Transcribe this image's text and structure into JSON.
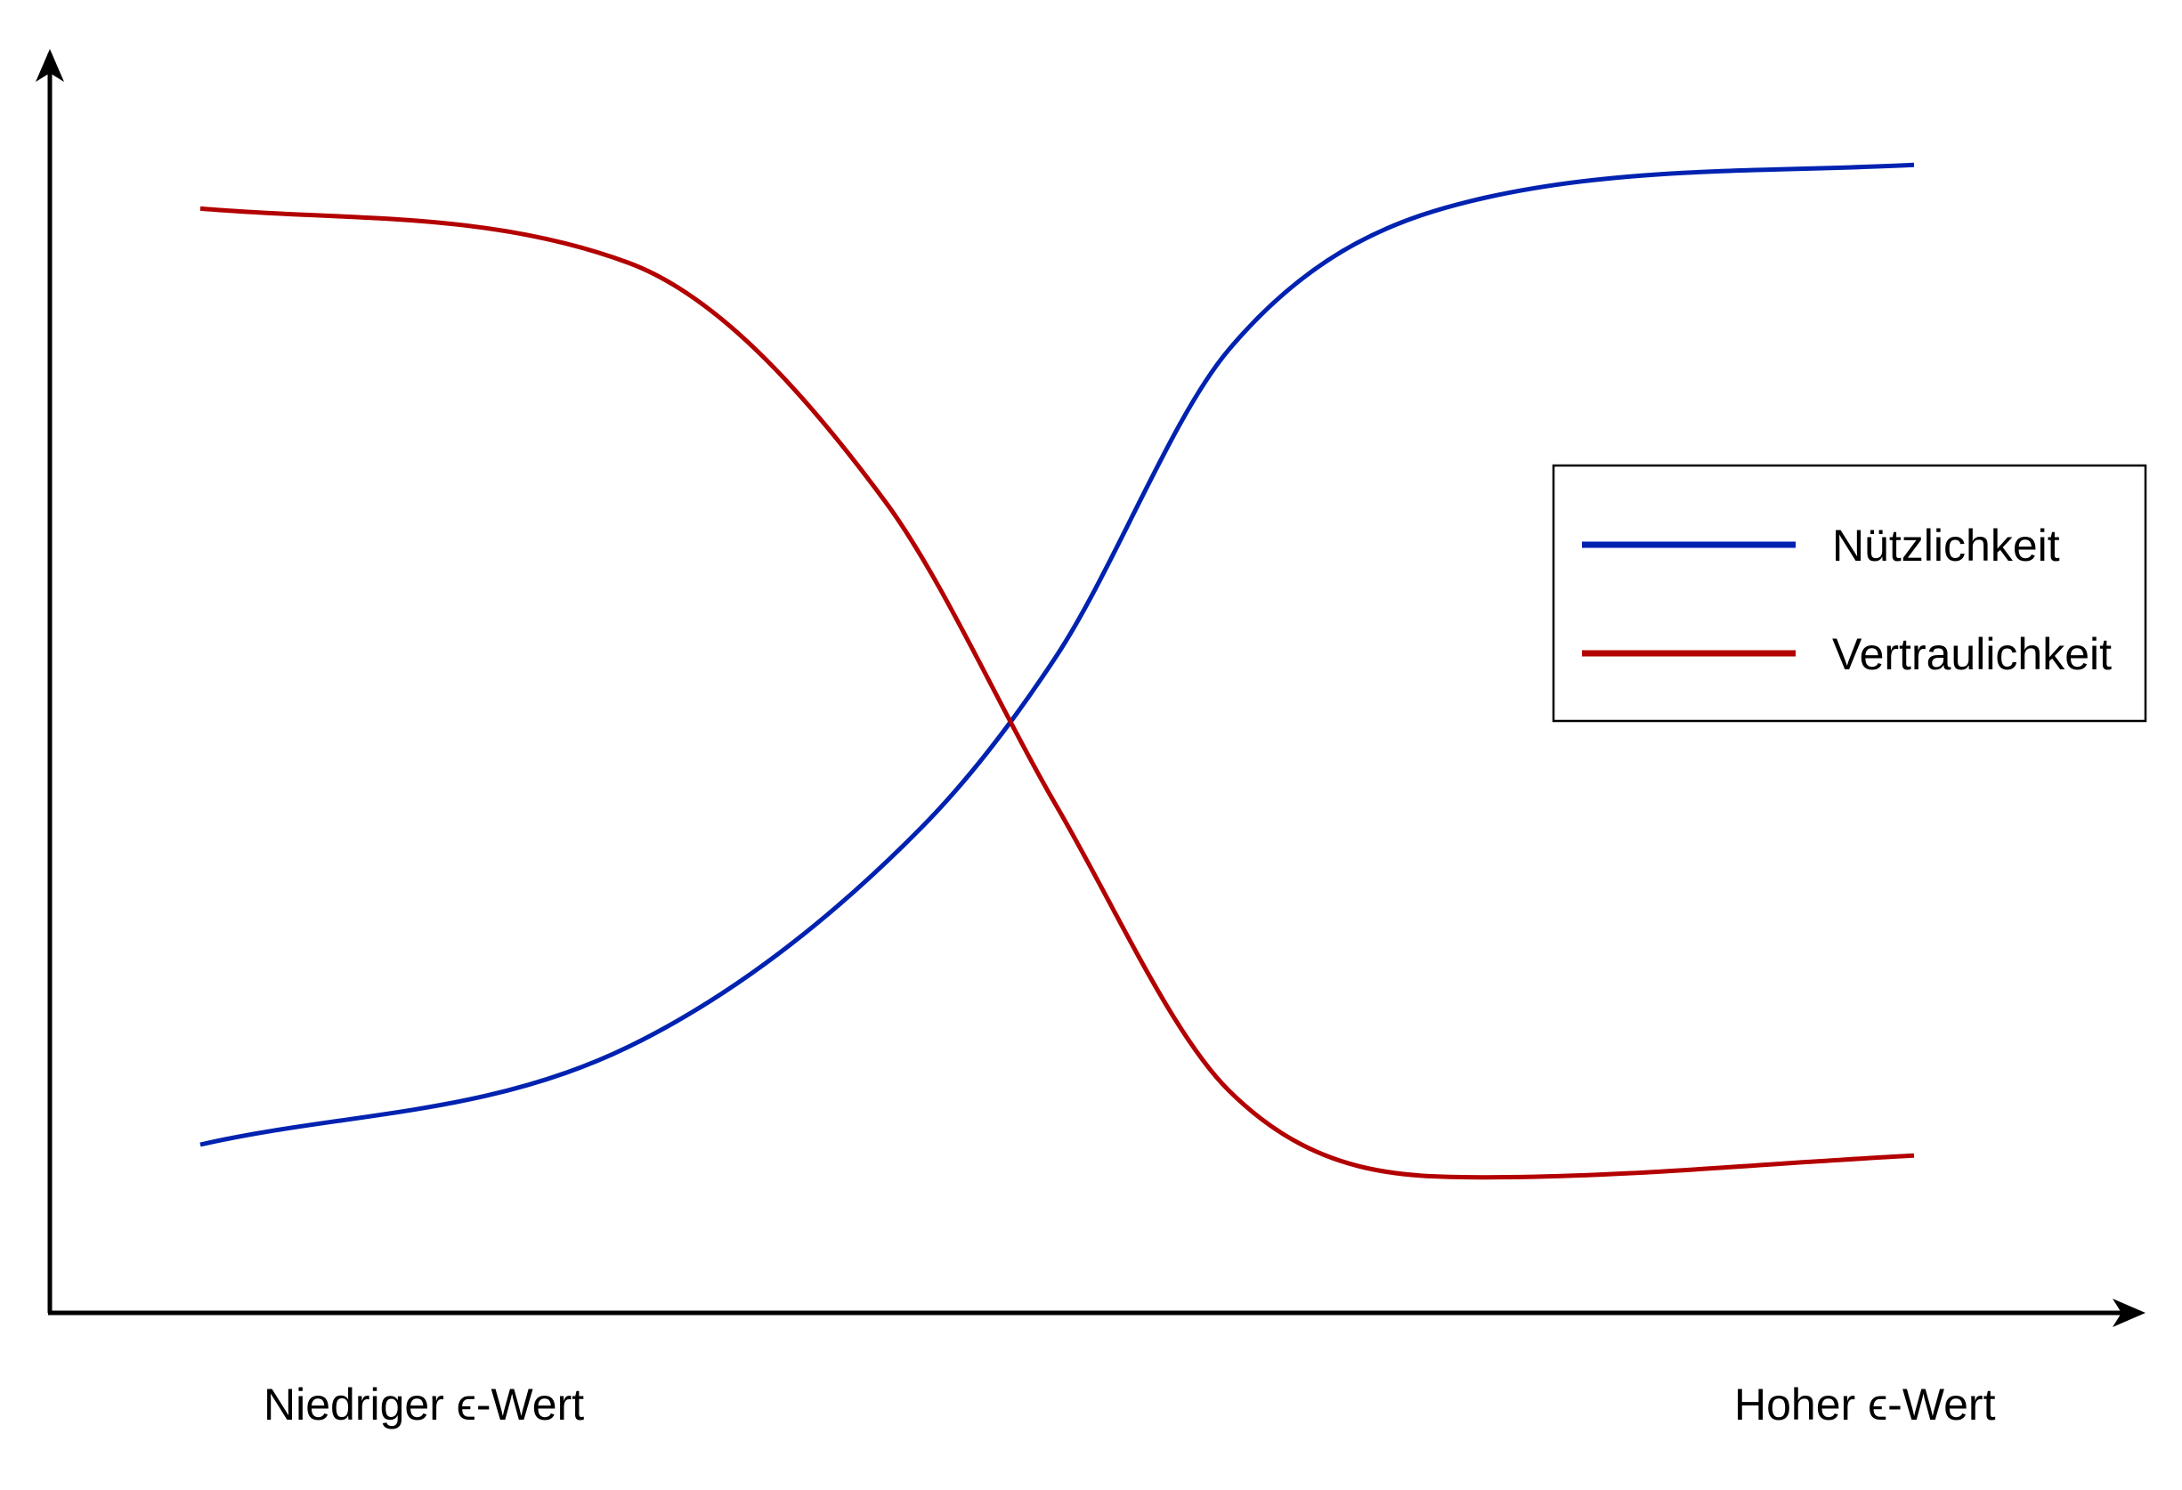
{
  "chart_data": {
    "type": "line",
    "title": "",
    "xlabel": "",
    "ylabel": "",
    "x_tick_labels": [
      "Niedriger ϵ-Wert",
      "Hoher ϵ-Wert"
    ],
    "xlim": [
      0,
      1
    ],
    "ylim": [
      0,
      1
    ],
    "grid": false,
    "legend_position": "right",
    "series": [
      {
        "name": "Nützlichkeit",
        "color": "#0022b0",
        "x": [
          0.0,
          0.25,
          0.42,
          0.5,
          0.6,
          0.75,
          1.0
        ],
        "y": [
          0.13,
          0.22,
          0.42,
          0.58,
          0.86,
          1.0,
          1.03
        ]
      },
      {
        "name": "Vertraulichkeit",
        "color": "#b30000",
        "x": [
          0.0,
          0.25,
          0.4,
          0.5,
          0.6,
          0.75,
          1.0
        ],
        "y": [
          0.99,
          0.94,
          0.72,
          0.44,
          0.18,
          0.1,
          0.12
        ]
      }
    ]
  }
}
